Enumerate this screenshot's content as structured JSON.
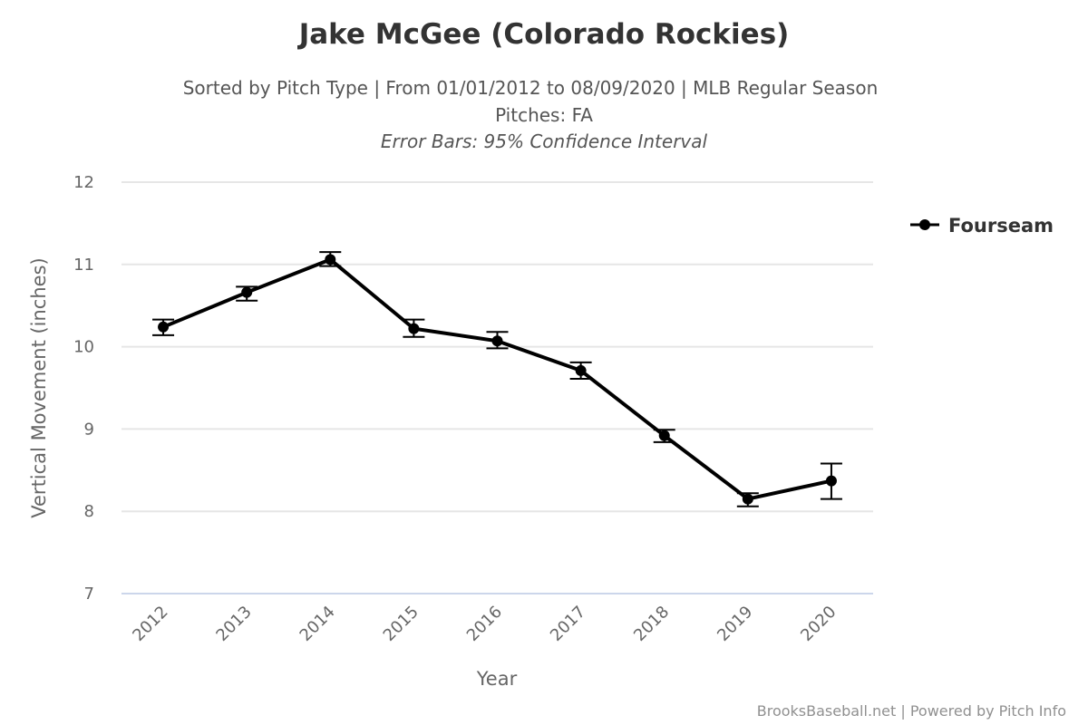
{
  "chart_data": {
    "type": "line",
    "title": "Jake McGee (Colorado Rockies)",
    "subtitle_lines": [
      "Sorted by Pitch Type | From 01/01/2012 to 08/09/2020 | MLB Regular Season",
      "Pitches: FA"
    ],
    "error_note": "Error Bars: 95% Confidence Interval",
    "xlabel": "Year",
    "ylabel": "Vertical Movement (inches)",
    "categories": [
      "2012",
      "2013",
      "2014",
      "2015",
      "2016",
      "2017",
      "2018",
      "2019",
      "2020"
    ],
    "ylim": [
      7,
      12
    ],
    "yticks": [
      7,
      8,
      9,
      10,
      11,
      12
    ],
    "grid": true,
    "legend_position": "right",
    "series": [
      {
        "name": "Fourseam",
        "color": "#000000",
        "values": [
          10.24,
          10.66,
          11.06,
          10.22,
          10.07,
          9.71,
          8.92,
          8.15,
          8.37
        ],
        "error_low": [
          10.14,
          10.56,
          10.98,
          10.12,
          9.98,
          9.61,
          8.84,
          8.06,
          8.15
        ],
        "error_high": [
          10.33,
          10.73,
          11.15,
          10.33,
          10.18,
          9.81,
          8.99,
          8.22,
          8.58
        ]
      }
    ],
    "credit": "BrooksBaseball.net | Powered by Pitch Info"
  }
}
